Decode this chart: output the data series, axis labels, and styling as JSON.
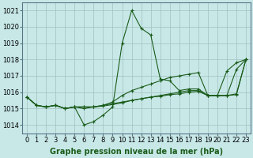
{
  "xlabel": "Graphe pression niveau de la mer (hPa)",
  "background_color": "#c8e8e8",
  "grid_color": "#a0c0c0",
  "line_color": "#1a5c1a",
  "x_ticks": [
    0,
    1,
    2,
    3,
    4,
    5,
    6,
    7,
    8,
    9,
    10,
    11,
    12,
    13,
    14,
    15,
    16,
    17,
    18,
    19,
    20,
    21,
    22,
    23
  ],
  "ylim": [
    1013.5,
    1021.5
  ],
  "yticks": [
    1014,
    1015,
    1016,
    1017,
    1018,
    1019,
    1020,
    1021
  ],
  "series": [
    [
      1015.7,
      1015.2,
      1015.1,
      1015.2,
      1015.0,
      1015.1,
      1014.0,
      1014.2,
      1014.6,
      1015.1,
      1019.0,
      1021.0,
      1019.9,
      1019.5,
      1016.8,
      1016.7,
      1016.1,
      1016.2,
      1016.2,
      1015.8,
      1015.8,
      1017.3,
      1017.8,
      1018.0
    ],
    [
      1015.7,
      1015.2,
      1015.1,
      1015.2,
      1015.0,
      1015.1,
      1015.1,
      1015.1,
      1015.2,
      1015.4,
      1015.8,
      1016.1,
      1016.3,
      1016.5,
      1016.7,
      1016.9,
      1017.0,
      1017.1,
      1017.2,
      1015.8,
      1015.8,
      1015.8,
      1017.4,
      1018.0
    ],
    [
      1015.7,
      1015.2,
      1015.1,
      1015.2,
      1015.0,
      1015.1,
      1015.1,
      1015.1,
      1015.2,
      1015.3,
      1015.4,
      1015.5,
      1015.6,
      1015.7,
      1015.8,
      1015.9,
      1016.0,
      1016.1,
      1016.1,
      1015.8,
      1015.8,
      1015.8,
      1015.9,
      1018.0
    ],
    [
      1015.7,
      1015.2,
      1015.1,
      1015.2,
      1015.0,
      1015.1,
      1015.0,
      1015.1,
      1015.15,
      1015.25,
      1015.35,
      1015.5,
      1015.6,
      1015.7,
      1015.75,
      1015.85,
      1015.9,
      1016.0,
      1016.05,
      1015.8,
      1015.8,
      1015.8,
      1015.85,
      1018.0
    ]
  ],
  "xlabel_fontsize": 7,
  "tick_fontsize": 6,
  "label_color": "#1a5c1a"
}
